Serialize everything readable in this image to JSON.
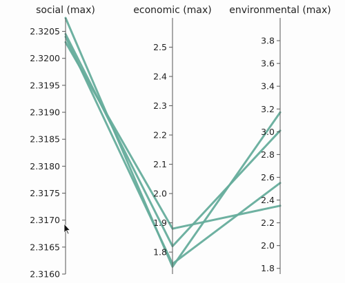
{
  "chart_data": {
    "type": "parallel-coordinates",
    "line_color": "#66ad9c",
    "axes": [
      {
        "key": "social",
        "label": "social (max)",
        "range": [
          2.316,
          2.32075
        ],
        "ticks": [
          2.316,
          2.3165,
          2.317,
          2.3175,
          2.318,
          2.3185,
          2.319,
          2.3195,
          2.32,
          2.3205
        ],
        "tick_labels": [
          "2.3160",
          "2.3165",
          "2.3170",
          "2.3175",
          "2.3180",
          "2.3185",
          "2.3190",
          "2.3195",
          "2.3200",
          "2.3205"
        ]
      },
      {
        "key": "economic",
        "label": "economic (max)",
        "range": [
          1.725,
          2.6
        ],
        "ticks": [
          1.8,
          1.9,
          2.0,
          2.1,
          2.2,
          2.3,
          2.4,
          2.5
        ],
        "tick_labels": [
          "1.8",
          "1.9",
          "2.0",
          "2.1",
          "2.2",
          "2.3",
          "2.4",
          "2.5"
        ]
      },
      {
        "key": "environmental",
        "label": "environmental (max)",
        "range": [
          1.75,
          4.0
        ],
        "ticks": [
          1.8,
          2.0,
          2.2,
          2.4,
          2.6,
          2.8,
          3.0,
          3.2,
          3.4,
          3.6,
          3.8
        ],
        "tick_labels": [
          "1.8",
          "2.0",
          "2.2",
          "2.4",
          "2.6",
          "2.8",
          "3.0",
          "3.2",
          "3.4",
          "3.6",
          "3.8"
        ]
      }
    ],
    "series": [
      {
        "values": [
          2.32075,
          1.75,
          3.17
        ]
      },
      {
        "values": [
          2.32045,
          1.82,
          3.01
        ]
      },
      {
        "values": [
          2.3204,
          1.76,
          2.55
        ]
      },
      {
        "values": [
          2.3203,
          1.88,
          2.35
        ]
      }
    ]
  }
}
